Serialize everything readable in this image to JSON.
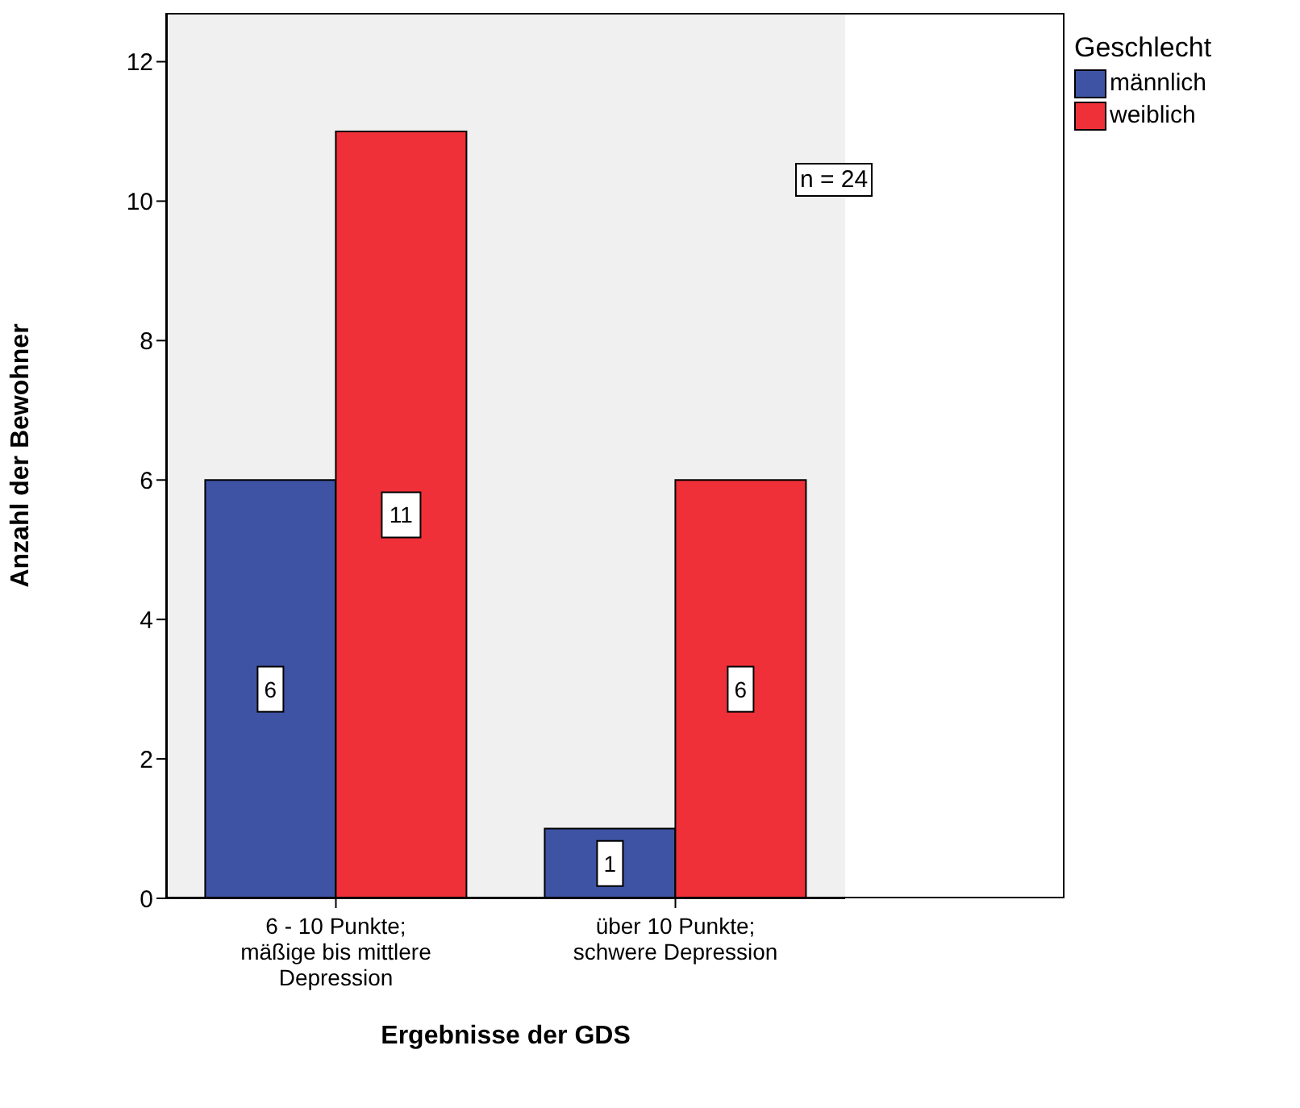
{
  "chart_data": {
    "type": "bar",
    "xlabel": "Ergebnisse der GDS",
    "ylabel": "Anzahl der Bewohner",
    "legend_title": "Geschlecht",
    "categories": [
      "6 - 10 Punkte;\nmäßige bis mittlere\nDepression",
      "über 10 Punkte;\nschwere Depression"
    ],
    "series": [
      {
        "name": "männlich",
        "color": "#3e53a4",
        "values": [
          6,
          1
        ]
      },
      {
        "name": "weiblich",
        "color": "#ef3038",
        "values": [
          11,
          6
        ]
      }
    ],
    "ylim": [
      0,
      12.7
    ],
    "yticks": [
      0,
      2,
      4,
      6,
      8,
      10,
      12
    ],
    "data_labels": true,
    "legend": "top right",
    "annotations": [
      "n = 24"
    ]
  }
}
